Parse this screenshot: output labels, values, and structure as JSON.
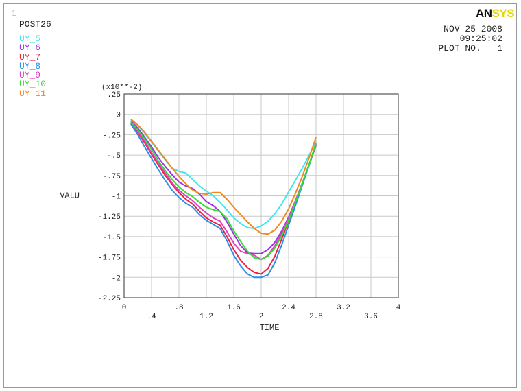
{
  "window_number": "1",
  "post_title": "POST26",
  "logo": {
    "part1": "AN",
    "part2": "SYS"
  },
  "info": {
    "date": "NOV 25 2008",
    "time": "09:25:02",
    "plot_no": "PLOT NO.   1"
  },
  "colors": {
    "UY_5": "#40e6f0",
    "UY_6": "#a030e8",
    "UY_7": "#f02040",
    "UY_8": "#2a90e8",
    "UY_9": "#e040c0",
    "UY_10": "#30e030",
    "UY_11": "#f08a20",
    "grid": "#c8c8c8",
    "axis": "#333333"
  },
  "chart_data": {
    "type": "line",
    "title": "",
    "xlabel": "TIME",
    "ylabel": "VALU",
    "y_multiplier_label": "(x10**-2)",
    "xlim": [
      0,
      4
    ],
    "ylim": [
      -2.25,
      0.25
    ],
    "x_ticks": [
      0,
      0.4,
      0.8,
      1.2,
      1.6,
      2,
      2.4,
      2.8,
      3.2,
      3.6,
      4
    ],
    "x_tick_labels": [
      "0",
      ".4",
      ".8",
      "1.2",
      "1.6",
      "2",
      "2.4",
      "2.8",
      "3.2",
      "3.6",
      "4"
    ],
    "y_ticks": [
      0.25,
      0,
      -0.25,
      -0.5,
      -0.75,
      -1,
      -1.25,
      -1.5,
      -1.75,
      -2,
      -2.25
    ],
    "y_tick_labels": [
      ".25",
      "0",
      "-.25",
      "-.5",
      "-.75",
      "-1",
      "-1.25",
      "-1.5",
      "-1.75",
      "-2",
      "-2.25"
    ],
    "grid": true,
    "x": [
      0.1,
      0.2,
      0.3,
      0.4,
      0.5,
      0.6,
      0.7,
      0.8,
      0.9,
      1.0,
      1.1,
      1.2,
      1.3,
      1.4,
      1.5,
      1.6,
      1.7,
      1.8,
      1.9,
      2.0,
      2.1,
      2.2,
      2.3,
      2.4,
      2.5,
      2.6,
      2.7,
      2.8
    ],
    "series": [
      {
        "name": "UY_5",
        "values": [
          -0.07,
          -0.14,
          -0.23,
          -0.34,
          -0.45,
          -0.56,
          -0.66,
          -0.7,
          -0.72,
          -0.8,
          -0.88,
          -0.94,
          -1.0,
          -1.08,
          -1.17,
          -1.27,
          -1.34,
          -1.39,
          -1.4,
          -1.37,
          -1.31,
          -1.22,
          -1.1,
          -0.95,
          -0.81,
          -0.66,
          -0.5,
          -0.33
        ]
      },
      {
        "name": "UY_6",
        "values": [
          -0.08,
          -0.17,
          -0.28,
          -0.4,
          -0.53,
          -0.64,
          -0.74,
          -0.83,
          -0.88,
          -0.91,
          -0.98,
          -1.07,
          -1.12,
          -1.19,
          -1.32,
          -1.47,
          -1.61,
          -1.7,
          -1.71,
          -1.71,
          -1.66,
          -1.57,
          -1.43,
          -1.26,
          -1.06,
          -0.85,
          -0.62,
          -0.36
        ]
      },
      {
        "name": "UY_7",
        "values": [
          -0.11,
          -0.22,
          -0.35,
          -0.49,
          -0.62,
          -0.75,
          -0.86,
          -0.96,
          -1.04,
          -1.1,
          -1.19,
          -1.27,
          -1.32,
          -1.36,
          -1.5,
          -1.66,
          -1.79,
          -1.88,
          -1.94,
          -1.96,
          -1.89,
          -1.74,
          -1.53,
          -1.31,
          -1.08,
          -0.85,
          -0.61,
          -0.37
        ]
      },
      {
        "name": "UY_8",
        "values": [
          -0.12,
          -0.25,
          -0.4,
          -0.54,
          -0.68,
          -0.81,
          -0.93,
          -1.02,
          -1.09,
          -1.14,
          -1.23,
          -1.3,
          -1.35,
          -1.4,
          -1.55,
          -1.73,
          -1.86,
          -1.96,
          -2.0,
          -2.0,
          -1.97,
          -1.82,
          -1.6,
          -1.36,
          -1.12,
          -0.87,
          -0.62,
          -0.38
        ]
      },
      {
        "name": "UY_9",
        "values": [
          -0.1,
          -0.21,
          -0.33,
          -0.47,
          -0.6,
          -0.72,
          -0.84,
          -0.93,
          -1.0,
          -1.06,
          -1.14,
          -1.21,
          -1.27,
          -1.31,
          -1.44,
          -1.58,
          -1.68,
          -1.71,
          -1.73,
          -1.78,
          -1.73,
          -1.61,
          -1.46,
          -1.27,
          -1.06,
          -0.84,
          -0.61,
          -0.38
        ]
      },
      {
        "name": "UY_10",
        "values": [
          -0.09,
          -0.19,
          -0.3,
          -0.43,
          -0.57,
          -0.69,
          -0.8,
          -0.89,
          -0.96,
          -1.01,
          -1.08,
          -1.14,
          -1.17,
          -1.19,
          -1.28,
          -1.43,
          -1.56,
          -1.68,
          -1.76,
          -1.78,
          -1.74,
          -1.64,
          -1.49,
          -1.3,
          -1.08,
          -0.85,
          -0.61,
          -0.35
        ]
      },
      {
        "name": "UY_11",
        "values": [
          -0.06,
          -0.13,
          -0.22,
          -0.33,
          -0.44,
          -0.55,
          -0.66,
          -0.76,
          -0.85,
          -0.93,
          -0.97,
          -0.98,
          -0.96,
          -0.96,
          -1.04,
          -1.14,
          -1.23,
          -1.32,
          -1.4,
          -1.46,
          -1.47,
          -1.42,
          -1.31,
          -1.16,
          -0.97,
          -0.76,
          -0.53,
          -0.28
        ]
      }
    ]
  }
}
